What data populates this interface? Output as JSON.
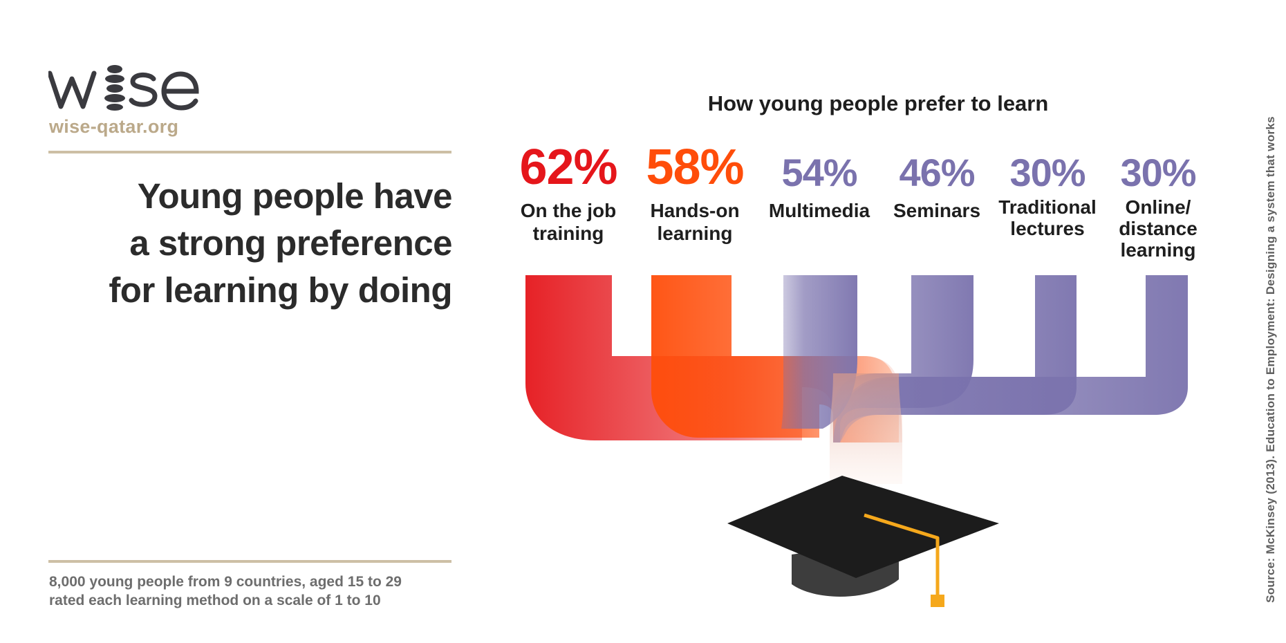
{
  "brand": {
    "logo_text": "wise",
    "site": "wise-qatar.org"
  },
  "headline": {
    "line1": "Young people have",
    "line2": "a strong preference",
    "line3": "for learning by doing"
  },
  "survey_note": {
    "line1": "8,000 young people from 9 countries, aged 15 to 29",
    "line2": "rated each learning method on a scale of 1 to 10"
  },
  "source": "Source: McKinsey (2013). Education to Employment: Designing a system that works",
  "colors": {
    "red": "#e5161b",
    "orange": "#ff4d0a",
    "purple": "#7a72ad",
    "cap": "#1a1a1a",
    "tassel": "#f5a81c",
    "rule": "#cdbfa5"
  },
  "chart_data": {
    "type": "bar",
    "title": "How young people prefer to learn",
    "unit": "%",
    "categories": [
      "On the job training",
      "Hands-on learning",
      "Multimedia",
      "Seminars",
      "Traditional lectures",
      "Online/ distance learning"
    ],
    "values": [
      62,
      58,
      54,
      46,
      30,
      30
    ],
    "items": [
      {
        "value_text": "62%",
        "label_lines": [
          "On the job",
          "training"
        ],
        "color": "#e5161b"
      },
      {
        "value_text": "58%",
        "label_lines": [
          "Hands-on",
          "learning"
        ],
        "color": "#ff4d0a"
      },
      {
        "value_text": "54%",
        "label_lines": [
          "Multimedia"
        ],
        "color": "#7a72ad"
      },
      {
        "value_text": "46%",
        "label_lines": [
          "Seminars"
        ],
        "color": "#7a72ad"
      },
      {
        "value_text": "30%",
        "label_lines": [
          "Traditional",
          "lectures"
        ],
        "color": "#7a72ad"
      },
      {
        "value_text": "30%",
        "label_lines": [
          "Online/",
          "distance",
          "learning"
        ],
        "color": "#7a72ad"
      }
    ]
  }
}
